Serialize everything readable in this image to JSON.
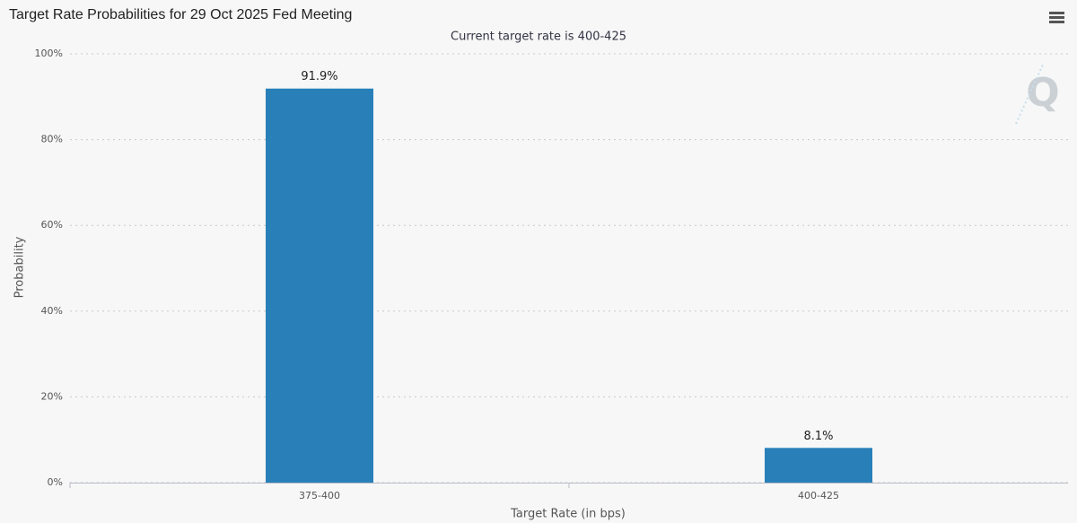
{
  "chart_data": {
    "type": "bar",
    "title": "Target Rate Probabilities for 29 Oct 2025 Fed Meeting",
    "subtitle": "Current target rate is 400-425",
    "x_label": "Target Rate (in bps)",
    "y_label": "Probability",
    "categories": [
      "375-400",
      "400-425"
    ],
    "values": [
      91.9,
      8.1
    ],
    "value_labels": [
      "91.9%",
      "8.1%"
    ],
    "color": "#2980b9",
    "ylim": [
      0,
      100
    ],
    "yticks": [
      {
        "value": 0,
        "label": "0%"
      },
      {
        "value": 20,
        "label": "20%"
      },
      {
        "value": 40,
        "label": "40%"
      },
      {
        "value": 60,
        "label": "60%"
      },
      {
        "value": 80,
        "label": "80%"
      },
      {
        "value": 100,
        "label": "100%"
      }
    ],
    "grid": true
  }
}
